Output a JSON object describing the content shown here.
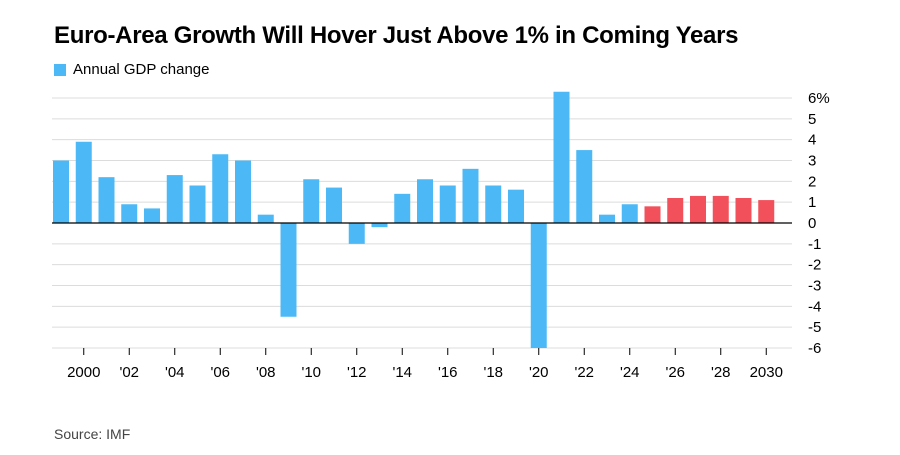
{
  "title": "Euro-Area Growth Will Hover Just Above 1% in Coming Years",
  "legend": {
    "label": "Annual GDP change"
  },
  "source": "Source: IMF",
  "colors": {
    "actual": "#4cb8f5",
    "forecast": "#f2505a",
    "grid": "#dcdcdc",
    "zero": "#000000"
  },
  "chart_data": {
    "type": "bar",
    "x": [
      1999,
      2000,
      2001,
      2002,
      2003,
      2004,
      2005,
      2006,
      2007,
      2008,
      2009,
      2010,
      2011,
      2012,
      2013,
      2014,
      2015,
      2016,
      2017,
      2018,
      2019,
      2020,
      2021,
      2022,
      2023,
      2024,
      2025,
      2026,
      2027,
      2028,
      2029,
      2030
    ],
    "series": [
      {
        "name": "Annual GDP change",
        "values": [
          3.0,
          3.9,
          2.2,
          0.9,
          0.7,
          2.3,
          1.8,
          3.3,
          3.0,
          0.4,
          -4.5,
          2.1,
          1.7,
          -1.0,
          -0.2,
          1.4,
          2.1,
          1.8,
          2.6,
          1.8,
          1.6,
          -6.0,
          6.3,
          3.5,
          0.4,
          0.9,
          0.8,
          1.2,
          1.3,
          1.3,
          1.2,
          1.1
        ]
      }
    ],
    "forecast_from": 2025,
    "ylim": [
      -6,
      6
    ],
    "yticks": [
      6,
      5,
      4,
      3,
      2,
      1,
      0,
      -1,
      -2,
      -3,
      -4,
      -5,
      -6
    ],
    "ytick_labels": [
      "6%",
      "5",
      "4",
      "3",
      "2",
      "1",
      "0",
      "-1",
      "-2",
      "-3",
      "-4",
      "-5",
      "-6"
    ],
    "xticks": [
      2000,
      2002,
      2004,
      2006,
      2008,
      2010,
      2012,
      2014,
      2016,
      2018,
      2020,
      2022,
      2024,
      2026,
      2028,
      2030
    ],
    "xtick_labels": [
      "2000",
      "'02",
      "'04",
      "'06",
      "'08",
      "'10",
      "'12",
      "'14",
      "'16",
      "'18",
      "'20",
      "'22",
      "'24",
      "'26",
      "'28",
      "2030"
    ],
    "grid": true,
    "y_axis_side": "right",
    "legend_position": "top-left"
  }
}
